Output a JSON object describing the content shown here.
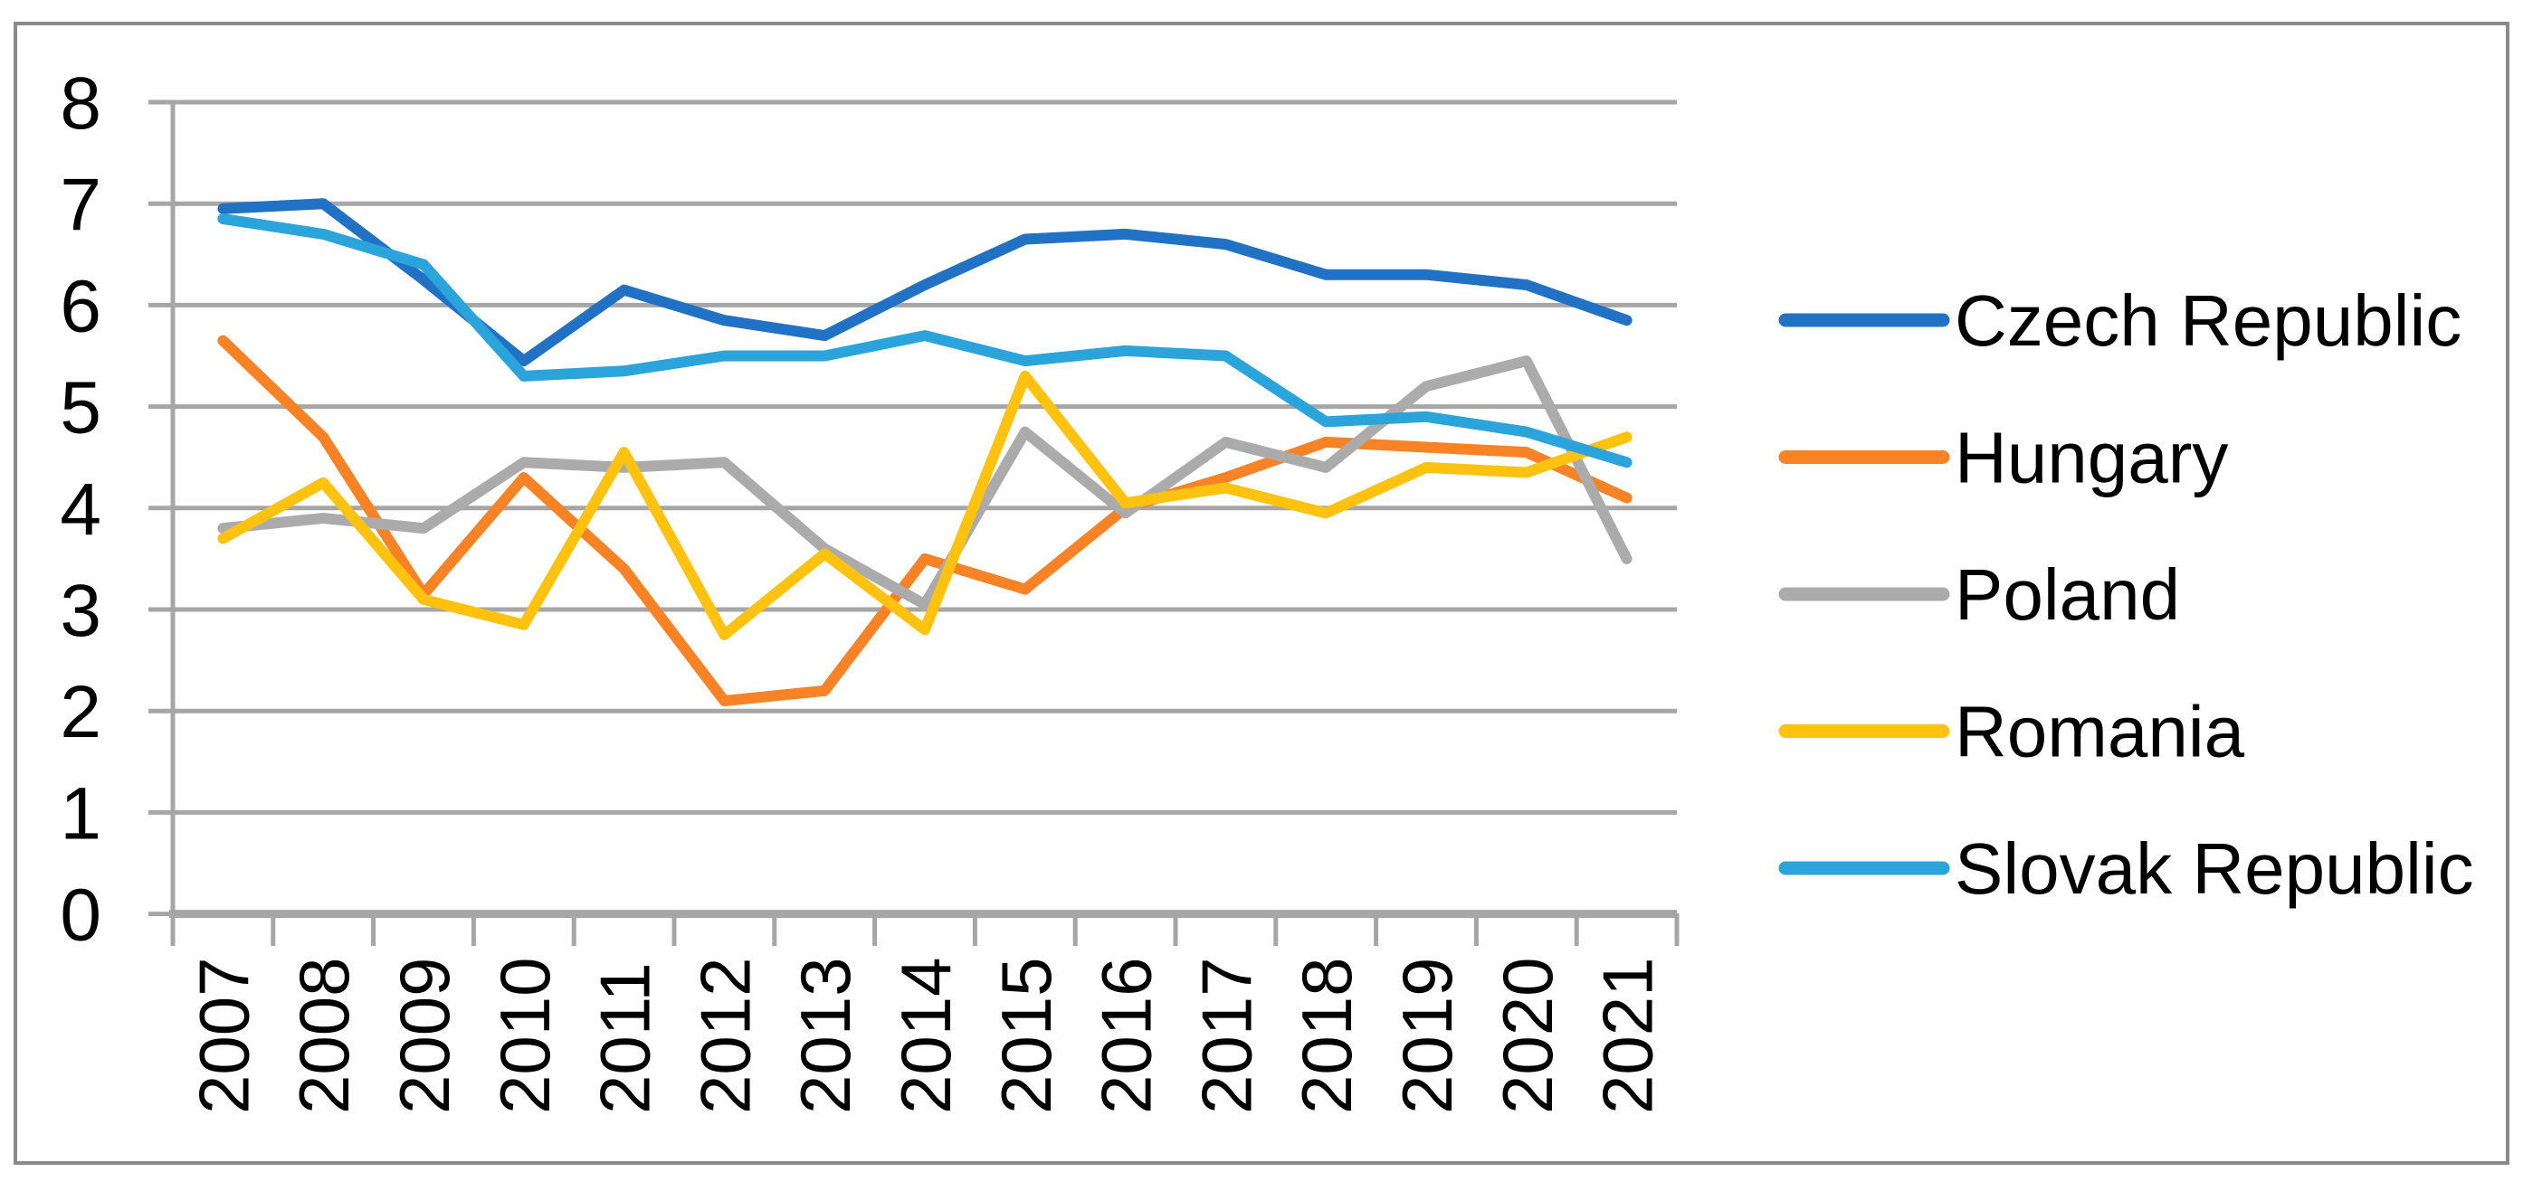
{
  "figure": {
    "background_color": "#FFFFFF",
    "border_color": "#8A8A8A"
  },
  "chart_data": {
    "type": "line",
    "title": "",
    "xlabel": "",
    "ylabel": "",
    "grid": true,
    "legend_position": "right",
    "gridline_color": "#A6A6A6",
    "axis_color": "#A6A6A6",
    "text_color": "#000000",
    "categories": [
      "2007",
      "2008",
      "2009",
      "2010",
      "2011",
      "2012",
      "2013",
      "2014",
      "2015",
      "2016",
      "2017",
      "2018",
      "2019",
      "2020",
      "2021"
    ],
    "x_axis": {
      "label_rotation": -90
    },
    "y_axis": {
      "min": 0,
      "max": 8,
      "tick_interval": 1,
      "tick_labels": [
        "0",
        "1",
        "2",
        "3",
        "4",
        "5",
        "6",
        "7",
        "8"
      ]
    },
    "series": [
      {
        "name": "Czech Republic",
        "color": "#2171C4",
        "values": [
          6.95,
          7.0,
          6.25,
          5.45,
          6.15,
          5.85,
          5.7,
          6.2,
          6.65,
          6.7,
          6.6,
          6.3,
          6.3,
          6.2,
          5.85
        ]
      },
      {
        "name": "Hungary",
        "color": "#F88327",
        "values": [
          5.65,
          4.7,
          3.15,
          4.3,
          3.4,
          2.1,
          2.2,
          3.5,
          3.2,
          4.0,
          4.3,
          4.65,
          4.6,
          4.55,
          4.1
        ]
      },
      {
        "name": "Poland",
        "color": "#ABABAB",
        "values": [
          3.8,
          3.9,
          3.8,
          4.45,
          4.4,
          4.45,
          3.6,
          3.05,
          4.75,
          3.95,
          4.65,
          4.4,
          5.2,
          5.45,
          3.5
        ]
      },
      {
        "name": "Romania",
        "color": "#FFC20E",
        "values": [
          3.7,
          4.25,
          3.1,
          2.85,
          4.55,
          2.75,
          3.55,
          2.8,
          5.3,
          4.05,
          4.2,
          3.95,
          4.4,
          4.35,
          4.7
        ]
      },
      {
        "name": "Slovak Republic",
        "color": "#2BA4DB",
        "values": [
          6.85,
          6.7,
          6.4,
          5.3,
          5.35,
          5.5,
          5.5,
          5.7,
          5.45,
          5.55,
          5.5,
          4.85,
          4.9,
          4.75,
          4.45
        ]
      }
    ]
  }
}
